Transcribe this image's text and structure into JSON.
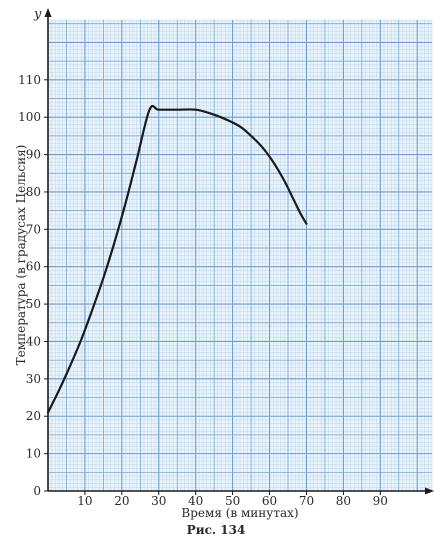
{
  "chart_data": {
    "type": "line",
    "xlabel": "Время (в минутах)",
    "ylabel": "Температура (в градусах Цельсия)",
    "x_axis_letter": "",
    "y_axis_letter": "y",
    "x_ticks": [
      "10",
      "20",
      "30",
      "40",
      "50",
      "60",
      "70",
      "80",
      "90"
    ],
    "y_ticks": [
      "0",
      "10",
      "20",
      "30",
      "40",
      "50",
      "60",
      "70",
      "80",
      "90",
      "100",
      "110"
    ],
    "xlim": [
      0,
      104
    ],
    "ylim": [
      0,
      126
    ],
    "grid": true,
    "series": [
      {
        "x": [
          0,
          3,
          6,
          9,
          12,
          15,
          18,
          21,
          24,
          27.5,
          30,
          35,
          40,
          44,
          48,
          52,
          55,
          58,
          61,
          64,
          66.5,
          68.5,
          70
        ],
        "y": [
          21,
          27,
          33.5,
          40.5,
          48.5,
          57,
          66.5,
          77,
          88.5,
          102,
          102,
          102,
          102,
          101,
          99.5,
          97.5,
          95,
          92,
          88,
          83,
          78,
          74,
          71.5
        ]
      }
    ]
  },
  "caption": "Рис. 134",
  "colors": {
    "background": "#e9f3fb",
    "grid_minor": "#b9d3ea",
    "grid_major": "#6e9ecd",
    "axis": "#1a1a1a",
    "curve": "#1a1a1a"
  }
}
